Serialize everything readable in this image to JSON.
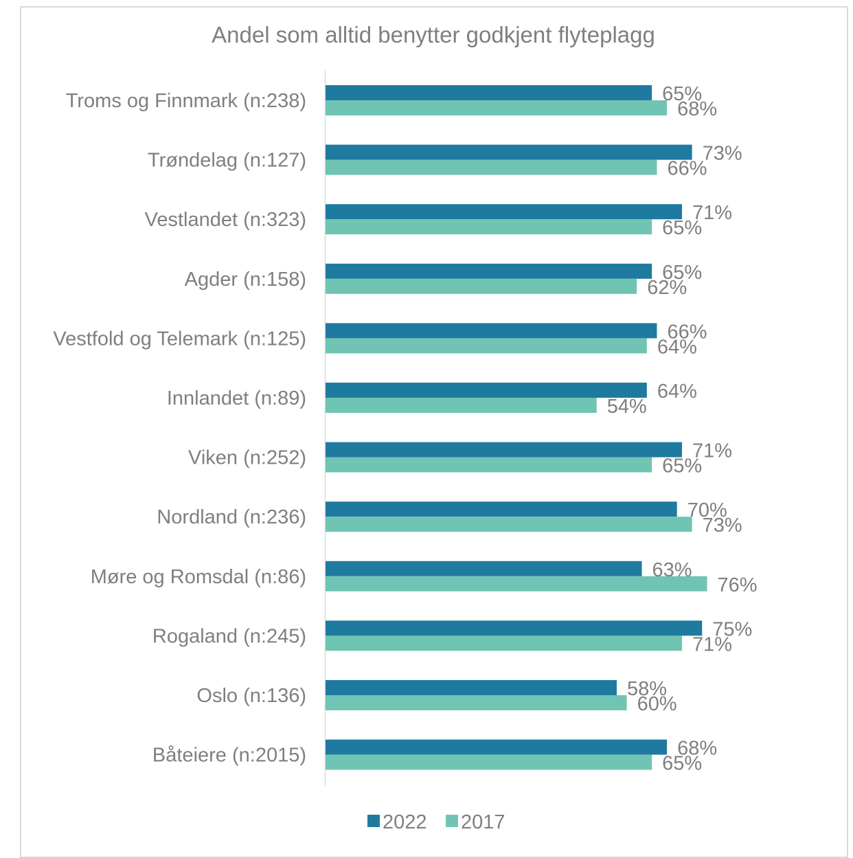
{
  "chart_data": {
    "type": "bar",
    "orientation": "horizontal",
    "title": "Andel som alltid benytter godkjent flyteplagg",
    "categories": [
      "Troms og Finnmark (n:238)",
      "Trøndelag (n:127)",
      "Vestlandet (n:323)",
      "Agder (n:158)",
      "Vestfold og Telemark (n:125)",
      "Innlandet (n:89)",
      "Viken (n:252)",
      "Nordland (n:236)",
      "Møre og Romsdal (n:86)",
      "Rogaland (n:245)",
      "Oslo (n:136)",
      "Båteiere (n:2015)"
    ],
    "series": [
      {
        "name": "2022",
        "color": "#1f7aa0",
        "values": [
          65,
          73,
          71,
          65,
          66,
          64,
          71,
          70,
          63,
          75,
          58,
          68
        ],
        "labels": [
          "65%",
          "73%",
          "71%",
          "65%",
          "66%",
          "64%",
          "71%",
          "70%",
          "63%",
          "75%",
          "58%",
          "68%"
        ]
      },
      {
        "name": "2017",
        "color": "#70c4b3",
        "values": [
          68,
          66,
          65,
          62,
          64,
          54,
          65,
          73,
          76,
          71,
          60,
          65
        ],
        "labels": [
          "68%",
          "66%",
          "65%",
          "62%",
          "64%",
          "54%",
          "65%",
          "73%",
          "76%",
          "71%",
          "60%",
          "65%"
        ]
      }
    ],
    "xlim": [
      0,
      100
    ],
    "value_format": "percent",
    "grid": false,
    "legend_position": "bottom"
  }
}
